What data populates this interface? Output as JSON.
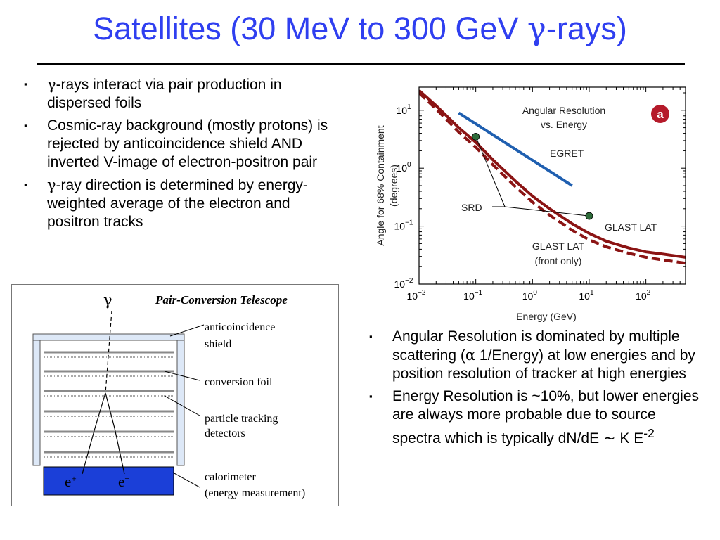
{
  "slide": {
    "title_prefix": "Satellites (30 MeV to 300 GeV ",
    "title_gamma": "γ",
    "title_suffix": "-rays)"
  },
  "left_bullets": [
    {
      "sym": "γ",
      "text": "-rays interact via pair production in dispersed foils"
    },
    {
      "sym": "",
      "text": "Cosmic-ray background (mostly protons) is rejected by anticoincidence shield AND inverted V-image of electron-positron pair"
    },
    {
      "sym": "γ",
      "text": "-ray direction is determined by energy-weighted average of the electron and positron tracks"
    }
  ],
  "right_bullets": {
    "b1_pre": "Angular Resolution is dominated by multiple scattering (",
    "b1_sym": "α",
    "b1_post": " 1/Energy) at low energies and by position resolution of tracker at high energies",
    "b2_pre": "Energy Resolution is ~10%, but lower energies are always more probable due to source spectra which is typically dN/dE ",
    "b2_sym": "~",
    "b2_post": " K E",
    "b2_sup": "-2"
  },
  "bullet_marker": "▪",
  "chart_data": {
    "type": "line",
    "title": "Angular Resolution vs. Energy",
    "title_line1": "Angular Resolution",
    "title_line2": "vs. Energy",
    "panel_label": "a",
    "xlabel": "Energy  (GeV)",
    "ylabel_line1": "Angle for 68% Containment",
    "ylabel_line2": "(degrees)",
    "x_scale": "log",
    "y_scale": "log",
    "xlim": [
      0.01,
      500
    ],
    "ylim": [
      0.01,
      25
    ],
    "x_ticks": [
      {
        "value": 0.01,
        "base": "10",
        "exp": "−2"
      },
      {
        "value": 0.1,
        "base": "10",
        "exp": "−1"
      },
      {
        "value": 1,
        "base": "10",
        "exp": "0"
      },
      {
        "value": 10,
        "base": "10",
        "exp": "1"
      },
      {
        "value": 100,
        "base": "10",
        "exp": "2"
      }
    ],
    "y_ticks": [
      {
        "value": 0.01,
        "base": "10",
        "exp": "−2"
      },
      {
        "value": 0.1,
        "base": "10",
        "exp": "−1"
      },
      {
        "value": 1,
        "base": "10",
        "exp": "0"
      },
      {
        "value": 10,
        "base": "10",
        "exp": "1"
      }
    ],
    "series": [
      {
        "name": "EGRET",
        "color": "#1f5fb0",
        "style": "solid",
        "x": [
          0.05,
          5
        ],
        "y": [
          9,
          0.5
        ]
      },
      {
        "name": "GLAST LAT",
        "color": "#8b1414",
        "style": "solid",
        "x": [
          0.01,
          0.02,
          0.05,
          0.1,
          0.2,
          0.5,
          1,
          2,
          5,
          10,
          20,
          50,
          100,
          200,
          500
        ],
        "y": [
          22,
          12,
          5,
          2.8,
          1.4,
          0.6,
          0.33,
          0.2,
          0.11,
          0.075,
          0.055,
          0.042,
          0.036,
          0.033,
          0.029
        ]
      },
      {
        "name": "GLAST LAT (front only)",
        "color": "#8b1414",
        "style": "dashed",
        "x": [
          0.01,
          0.02,
          0.05,
          0.1,
          0.2,
          0.5,
          1,
          2,
          5,
          10,
          20,
          50,
          100,
          200,
          500
        ],
        "y": [
          20,
          10.5,
          4.2,
          2.3,
          1.15,
          0.48,
          0.26,
          0.155,
          0.085,
          0.058,
          0.044,
          0.034,
          0.029,
          0.026,
          0.023
        ]
      }
    ],
    "srd_points": [
      {
        "x": 0.1,
        "y": 3.5
      },
      {
        "x": 10,
        "y": 0.15
      }
    ],
    "annotations": {
      "egret": "EGRET",
      "srd": "SRD",
      "glast": "GLAST LAT",
      "front_line1": "GLAST LAT",
      "front_line2": "(front only)"
    },
    "colors": {
      "glast": "#8b1414",
      "egret": "#1f5fb0",
      "srd_point": "#2e6b3a",
      "badge": "#b51a2a"
    }
  },
  "diagram": {
    "title": "Pair-Conversion Telescope",
    "gamma": "γ",
    "labels": {
      "shield_line1": "anticoincidence",
      "shield_line2": "shield",
      "foil": "conversion foil",
      "tracking_line1": "particle tracking",
      "tracking_line2": "detectors",
      "cal_line1": "calorimeter",
      "cal_line2": "(energy measurement)"
    },
    "positron_base": "e",
    "positron_sup": "+",
    "electron_base": "e",
    "electron_sup": "−",
    "colors": {
      "shield": "#dde8f7",
      "calorimeter": "#1b3fd8",
      "foil": "#8a8a8a"
    }
  }
}
